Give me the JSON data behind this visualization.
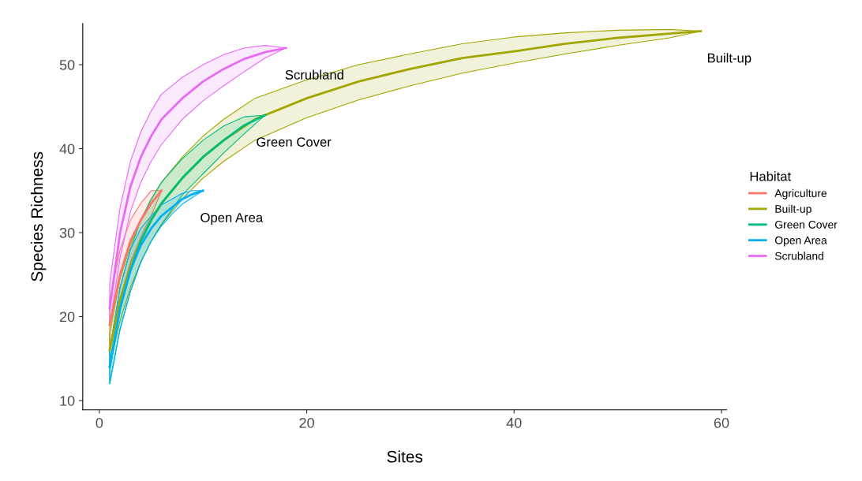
{
  "chart_data": {
    "type": "line",
    "xlabel": "Sites",
    "ylabel": "Species Richness",
    "legend_title": "Habitat",
    "legend": "right",
    "grid": false,
    "marker": "none",
    "line_style": "solid",
    "xlim": [
      -1.6,
      60.5
    ],
    "ylim": [
      8.9,
      54.9
    ],
    "xticks": [
      0,
      20,
      40,
      60
    ],
    "yticks": [
      10,
      20,
      30,
      40,
      50
    ],
    "series": [
      {
        "name": "Agriculture",
        "color": "#F8766D",
        "x": [
          1,
          2,
          3,
          4,
          5,
          6
        ],
        "values": [
          19,
          25,
          29,
          31.5,
          33.5,
          35
        ],
        "lower": [
          16,
          22,
          26.5,
          29.5,
          32,
          35
        ],
        "upper": [
          22,
          28,
          31.5,
          33.5,
          35,
          35
        ]
      },
      {
        "name": "Built-up",
        "color": "#A3A500",
        "x": [
          1,
          2,
          3,
          4,
          5,
          6,
          8,
          10,
          12,
          15,
          20,
          25,
          30,
          35,
          40,
          45,
          50,
          55,
          58
        ],
        "values": [
          16,
          22,
          26,
          29,
          31.5,
          33.5,
          36.5,
          39,
          41,
          43.5,
          46,
          48,
          49.5,
          50.8,
          51.6,
          52.5,
          53.2,
          53.7,
          54
        ],
        "lower": [
          14,
          19.5,
          23.5,
          26.5,
          29,
          31,
          34,
          36.5,
          38.5,
          41,
          43.7,
          45.8,
          47.5,
          49,
          50.2,
          51.3,
          52.3,
          53.2,
          54
        ],
        "upper": [
          18,
          24.5,
          28.5,
          31.5,
          34,
          36,
          39,
          41.5,
          43.5,
          46,
          48.2,
          50,
          51.3,
          52.5,
          53.3,
          53.8,
          54.1,
          54.2,
          54
        ]
      },
      {
        "name": "Green Cover",
        "color": "#00BF7D",
        "x": [
          1,
          2,
          3,
          4,
          5,
          6,
          8,
          10,
          12,
          14,
          16
        ],
        "values": [
          14,
          21,
          25.5,
          29,
          31.5,
          33.5,
          36.5,
          39,
          41,
          42.8,
          44
        ],
        "lower": [
          12,
          18.5,
          23,
          26.5,
          29,
          31,
          34.5,
          37,
          39.5,
          41.8,
          44
        ],
        "upper": [
          16,
          23.5,
          28,
          31.5,
          34,
          36,
          38.8,
          41,
          42.7,
          43.8,
          44
        ]
      },
      {
        "name": "Open Area",
        "color": "#00B0F6",
        "x": [
          1,
          2,
          3,
          4,
          5,
          6,
          7,
          8,
          9,
          10
        ],
        "values": [
          14,
          21,
          25.5,
          28.5,
          30.5,
          32,
          33,
          34,
          34.6,
          35
        ],
        "lower": [
          12,
          18.5,
          23,
          26.5,
          29,
          30.8,
          32.2,
          33.4,
          34.2,
          35
        ],
        "upper": [
          16,
          23.5,
          28,
          30.5,
          32,
          33.3,
          34,
          34.7,
          35,
          35
        ]
      },
      {
        "name": "Scrubland",
        "color": "#E76BF3",
        "x": [
          1,
          2,
          3,
          4,
          5,
          6,
          8,
          10,
          12,
          14,
          16,
          18
        ],
        "values": [
          21,
          30,
          35.5,
          39,
          41.5,
          43.5,
          46,
          48,
          49.5,
          50.7,
          51.5,
          52
        ],
        "lower": [
          19,
          27,
          32.5,
          36,
          38.5,
          40.5,
          43.5,
          45.7,
          47.5,
          49.2,
          50.8,
          52
        ],
        "upper": [
          24,
          33,
          38.5,
          42,
          44.5,
          46.5,
          48.5,
          50,
          51.2,
          52,
          52.3,
          52
        ]
      }
    ],
    "annotations": [
      {
        "text": "Scrubland",
        "x": 18,
        "y": 52
      },
      {
        "text": "Built-up",
        "x": 58,
        "y": 54
      },
      {
        "text": "Green Cover",
        "x": 16,
        "y": 44
      },
      {
        "text": "Open Area",
        "x": 10,
        "y": 35
      }
    ]
  }
}
